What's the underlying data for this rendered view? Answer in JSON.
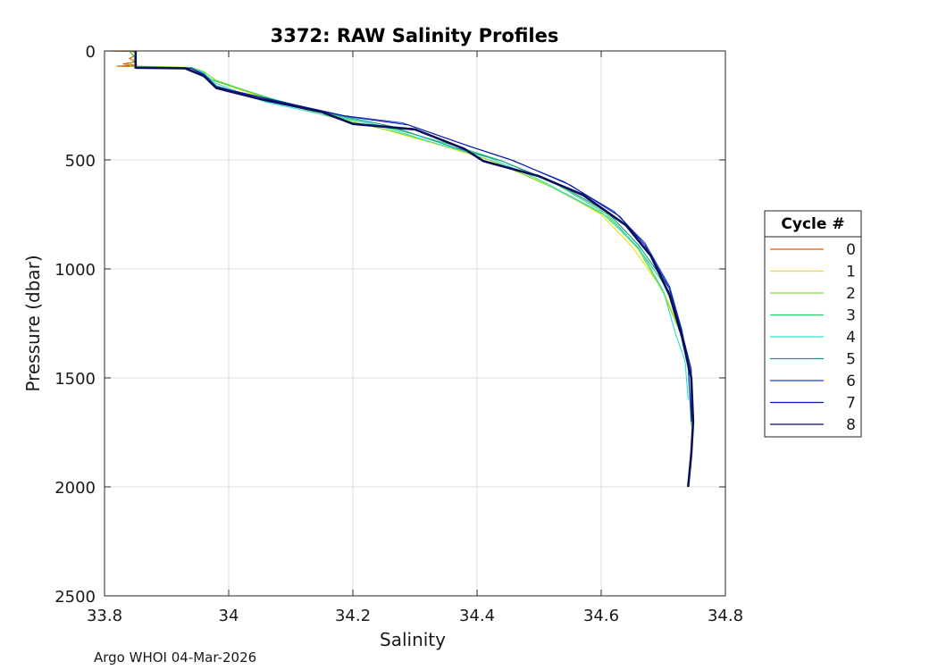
{
  "chart_data": {
    "type": "line",
    "title": "3372: RAW Salinity Profiles",
    "xlabel": "Salinity",
    "ylabel": "Pressure (dbar)",
    "xlim": [
      33.8,
      34.8
    ],
    "ylim": [
      0,
      2500
    ],
    "y_reversed": true,
    "grid": true,
    "x_ticks": [
      "33.8",
      "34",
      "34.2",
      "34.4",
      "34.6",
      "34.8"
    ],
    "x_tick_values": [
      33.8,
      34.0,
      34.2,
      34.4,
      34.6,
      34.8
    ],
    "y_ticks": [
      "0",
      "500",
      "1000",
      "1500",
      "2000",
      "2500"
    ],
    "y_tick_values": [
      0,
      500,
      1000,
      1500,
      2000,
      2500
    ],
    "legend": {
      "title": "Cycle #",
      "placement": "right"
    },
    "series": [
      {
        "name": "0",
        "color": "#d95f02",
        "points": [
          [
            33.8,
            0
          ],
          [
            33.84,
            2
          ],
          [
            33.85,
            5
          ],
          [
            33.85,
            20
          ],
          [
            33.84,
            35
          ],
          [
            33.85,
            50
          ],
          [
            33.83,
            60
          ],
          [
            33.85,
            66
          ],
          [
            33.82,
            70
          ],
          [
            33.86,
            72
          ],
          [
            33.92,
            74
          ]
        ]
      },
      {
        "name": "1",
        "color": "#e6e600",
        "points": [
          [
            33.84,
            0
          ],
          [
            33.85,
            30
          ],
          [
            33.85,
            70
          ],
          [
            33.93,
            75
          ],
          [
            33.95,
            90
          ],
          [
            33.98,
            140
          ],
          [
            34.05,
            210
          ],
          [
            34.15,
            290
          ],
          [
            34.25,
            360
          ],
          [
            34.35,
            440
          ],
          [
            34.42,
            500
          ],
          [
            34.52,
            620
          ],
          [
            34.6,
            750
          ],
          [
            34.65,
            900
          ],
          [
            34.7,
            1100
          ],
          [
            34.73,
            1300
          ],
          [
            34.74,
            1450
          ],
          [
            34.745,
            1700
          ]
        ]
      },
      {
        "name": "2",
        "color": "#7fdc3a",
        "points": [
          [
            33.84,
            0
          ],
          [
            33.85,
            30
          ],
          [
            33.84,
            70
          ],
          [
            33.94,
            76
          ],
          [
            33.96,
            95
          ],
          [
            33.98,
            135
          ],
          [
            34.06,
            215
          ],
          [
            34.16,
            300
          ],
          [
            34.26,
            365
          ],
          [
            34.36,
            445
          ],
          [
            34.43,
            510
          ],
          [
            34.52,
            625
          ],
          [
            34.61,
            760
          ],
          [
            34.66,
            910
          ],
          [
            34.7,
            1110
          ],
          [
            34.73,
            1310
          ],
          [
            34.74,
            1460
          ],
          [
            34.745,
            1720
          ]
        ]
      },
      {
        "name": "3",
        "color": "#2ed16a",
        "points": [
          [
            33.84,
            0
          ],
          [
            33.85,
            35
          ],
          [
            33.85,
            72
          ],
          [
            33.94,
            77
          ],
          [
            33.96,
            100
          ],
          [
            33.97,
            130
          ],
          [
            34.07,
            220
          ],
          [
            34.17,
            295
          ],
          [
            34.27,
            360
          ],
          [
            34.37,
            440
          ],
          [
            34.44,
            505
          ],
          [
            34.53,
            615
          ],
          [
            34.61,
            750
          ],
          [
            34.66,
            905
          ],
          [
            34.71,
            1105
          ],
          [
            34.73,
            1305
          ],
          [
            34.74,
            1455
          ],
          [
            34.745,
            1710
          ]
        ]
      },
      {
        "name": "4",
        "color": "#2fe0d0",
        "points": [
          [
            33.85,
            0
          ],
          [
            33.85,
            40
          ],
          [
            33.85,
            74
          ],
          [
            33.94,
            78
          ],
          [
            33.96,
            102
          ],
          [
            33.98,
            150
          ],
          [
            34.06,
            235
          ],
          [
            34.14,
            285
          ],
          [
            34.24,
            340
          ],
          [
            34.34,
            430
          ],
          [
            34.42,
            490
          ],
          [
            34.5,
            590
          ],
          [
            34.6,
            740
          ],
          [
            34.66,
            900
          ],
          [
            34.7,
            1100
          ],
          [
            34.72,
            1300
          ],
          [
            34.735,
            1420
          ],
          [
            34.74,
            1600
          ]
        ]
      },
      {
        "name": "5",
        "color": "#1a9a8a",
        "points": [
          [
            33.85,
            0
          ],
          [
            33.85,
            40
          ],
          [
            33.85,
            75
          ],
          [
            33.94,
            79
          ],
          [
            33.96,
            105
          ],
          [
            33.98,
            160
          ],
          [
            34.06,
            230
          ],
          [
            34.16,
            285
          ],
          [
            34.26,
            345
          ],
          [
            34.36,
            440
          ],
          [
            34.44,
            505
          ],
          [
            34.53,
            610
          ],
          [
            34.61,
            740
          ],
          [
            34.66,
            890
          ],
          [
            34.71,
            1090
          ],
          [
            34.73,
            1290
          ],
          [
            34.74,
            1450
          ],
          [
            34.745,
            1700
          ]
        ]
      },
      {
        "name": "6",
        "color": "#1f3fd6",
        "points": [
          [
            33.85,
            0
          ],
          [
            33.85,
            40
          ],
          [
            33.85,
            75
          ],
          [
            33.94,
            80
          ],
          [
            33.96,
            108
          ],
          [
            33.98,
            165
          ],
          [
            34.07,
            225
          ],
          [
            34.18,
            295
          ],
          [
            34.28,
            330
          ],
          [
            34.38,
            430
          ],
          [
            34.45,
            495
          ],
          [
            34.54,
            600
          ],
          [
            34.62,
            735
          ],
          [
            34.67,
            880
          ],
          [
            34.71,
            1080
          ],
          [
            34.73,
            1280
          ],
          [
            34.74,
            1440
          ],
          [
            34.745,
            1680
          ]
        ]
      },
      {
        "name": "7",
        "color": "#0b1aa8",
        "points": [
          [
            33.85,
            0
          ],
          [
            33.85,
            40
          ],
          [
            33.85,
            76
          ],
          [
            33.94,
            80
          ],
          [
            33.96,
            110
          ],
          [
            33.98,
            165
          ],
          [
            34.08,
            230
          ],
          [
            34.19,
            300
          ],
          [
            34.29,
            340
          ],
          [
            34.39,
            440
          ],
          [
            34.46,
            505
          ],
          [
            34.55,
            615
          ],
          [
            34.63,
            760
          ],
          [
            34.67,
            890
          ],
          [
            34.71,
            1090
          ],
          [
            34.73,
            1290
          ],
          [
            34.745,
            1460
          ],
          [
            34.745,
            1700
          ]
        ]
      },
      {
        "name": "8",
        "color": "#0a0f5c",
        "points": [
          [
            33.85,
            0
          ],
          [
            33.85,
            40
          ],
          [
            33.85,
            77
          ],
          [
            33.93,
            80
          ],
          [
            33.96,
            115
          ],
          [
            33.98,
            170
          ],
          [
            34.05,
            220
          ],
          [
            34.15,
            280
          ],
          [
            34.2,
            335
          ],
          [
            34.3,
            360
          ],
          [
            34.38,
            450
          ],
          [
            34.41,
            505
          ],
          [
            34.5,
            575
          ],
          [
            34.57,
            660
          ],
          [
            34.64,
            800
          ],
          [
            34.68,
            940
          ],
          [
            34.71,
            1120
          ],
          [
            34.73,
            1310
          ],
          [
            34.745,
            1500
          ],
          [
            34.748,
            1700
          ],
          [
            34.745,
            1850
          ],
          [
            34.74,
            2000
          ]
        ]
      }
    ],
    "footer": "Argo WHOI 04-Mar-2026"
  }
}
